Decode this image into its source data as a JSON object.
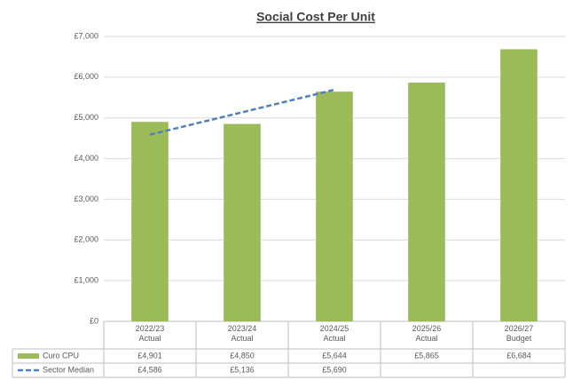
{
  "chart_data": {
    "type": "bar",
    "title": "Social Cost Per Unit",
    "categories": [
      "2022/23\nActual",
      "2023/24\nActual",
      "2024/25\nActual",
      "2025/26\nActual",
      "2026/27\nBudget"
    ],
    "series": [
      {
        "name": "Curo CPU",
        "type": "bar",
        "color": "#9bbb59",
        "values": [
          4901,
          4850,
          5644,
          5865,
          6684
        ],
        "value_labels": [
          "£4,901",
          "£4,850",
          "£5,644",
          "£5,865",
          "£6,684"
        ]
      },
      {
        "name": "Sector Median",
        "type": "line",
        "color": "#4f81bd",
        "values": [
          4586,
          5136,
          5690,
          null,
          null
        ],
        "value_labels": [
          "£4,586",
          "£5,136",
          "£5,690",
          null,
          null
        ]
      }
    ],
    "ylim": [
      0,
      7000
    ],
    "yticks": [
      {
        "value": 0,
        "label": "£0"
      },
      {
        "value": 1000,
        "label": "£1,000"
      },
      {
        "value": 2000,
        "label": "£2,000"
      },
      {
        "value": 3000,
        "label": "£3,000"
      },
      {
        "value": 4000,
        "label": "£4,000"
      },
      {
        "value": 5000,
        "label": "£5,000"
      },
      {
        "value": 6000,
        "label": "£6,000"
      },
      {
        "value": 7000,
        "label": "£7,000"
      }
    ],
    "grid": true
  }
}
